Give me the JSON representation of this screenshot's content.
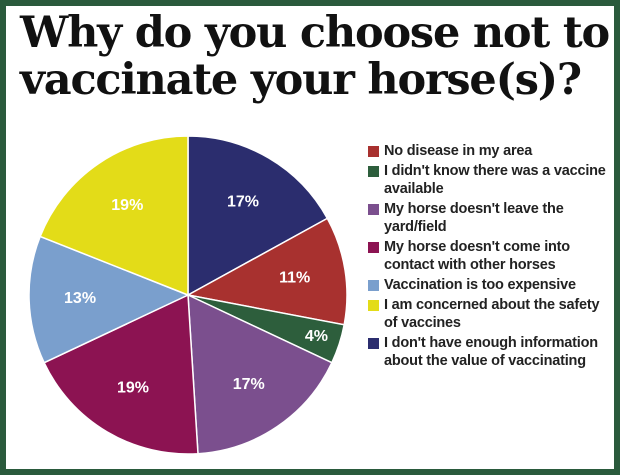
{
  "title_lines": [
    "Why do you choose not to",
    "vaccinate your horse(s)?"
  ],
  "colors": {
    "frame": "#2a5a3c",
    "background": "#ffffff"
  },
  "chart_data": {
    "type": "pie",
    "title": "Why do you choose not to vaccinate your horse(s)?",
    "legend_position": "right",
    "start": "top",
    "direction": "clockwise",
    "slices": [
      {
        "label": "I don't have enough information about the value of vaccinating",
        "value": 17,
        "display": "17%",
        "color": "#2b2d6e"
      },
      {
        "label": "No disease in my area",
        "value": 11,
        "display": "11%",
        "color": "#a8312f"
      },
      {
        "label": "I didn't know there was a vaccine available",
        "value": 4,
        "display": "4%",
        "color": "#2d5e3c"
      },
      {
        "label": "My horse doesn't leave the yard/field",
        "value": 17,
        "display": "17%",
        "color": "#7b4f8e"
      },
      {
        "label": "My horse doesn't come into contact with other horses",
        "value": 19,
        "display": "19%",
        "color": "#8c1352"
      },
      {
        "label": "Vaccination is too expensive",
        "value": 13,
        "display": "13%",
        "color": "#7a9fcd"
      },
      {
        "label": "I am concerned about the safety of vaccines",
        "value": 19,
        "display": "19%",
        "color": "#e3dc18"
      }
    ],
    "legend": [
      {
        "label": "No disease in my area",
        "color": "#a8312f"
      },
      {
        "label": "I didn't know there was a vaccine available",
        "color": "#2d5e3c"
      },
      {
        "label": "My horse doesn't leave the yard/field",
        "color": "#7b4f8e"
      },
      {
        "label": "My horse doesn't come into contact with other horses",
        "color": "#8c1352"
      },
      {
        "label": "Vaccination is too expensive",
        "color": "#7a9fcd"
      },
      {
        "label": "I am concerned about the safety of vaccines",
        "color": "#e3dc18"
      },
      {
        "label": "I don't have enough information about the value of vaccinating",
        "color": "#2b2d6e"
      }
    ]
  }
}
